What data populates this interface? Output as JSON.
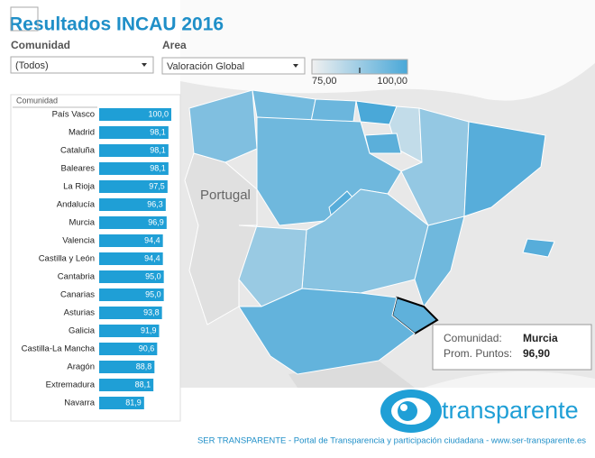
{
  "chart_data": {
    "type": "bar",
    "title": "Resultados INCAU 2016",
    "filters": [
      {
        "label": "Comunidad",
        "value": "(Todos)"
      },
      {
        "label": "Area",
        "value": "Valoración Global"
      }
    ],
    "column_header": "Comunidad",
    "categories": [
      "País Vasco",
      "Madrid",
      "Cataluña",
      "Baleares",
      "La Rioja",
      "Andalucía",
      "Murcia",
      "Valencia",
      "Castilla y León",
      "Cantabria",
      "Canarias",
      "Asturias",
      "Galicia",
      "Castilla-La Mancha",
      "Aragón",
      "Extremadura",
      "Navarra"
    ],
    "values": [
      100.0,
      98.1,
      98.1,
      98.1,
      97.5,
      96.3,
      96.9,
      94.4,
      94.4,
      95.0,
      95.0,
      93.8,
      91.9,
      90.6,
      88.8,
      88.1,
      81.9
    ],
    "value_labels": [
      "100,0",
      "98,1",
      "98,1",
      "98,1",
      "97,5",
      "96,3",
      "96,9",
      "94,4",
      "94,4",
      "95,0",
      "95,0",
      "93,8",
      "91,9",
      "90,6",
      "88,8",
      "88,1",
      "81,9"
    ],
    "color": "#1f9fd6",
    "xlim": [
      52,
      100
    ],
    "color_scale": {
      "colors": [
        "#f0f0f0",
        "#4aa8d8"
      ],
      "range": [
        {
          "value": 75,
          "label": "75,00"
        },
        {
          "value": 100,
          "label": "100,00"
        }
      ]
    },
    "map_label": "Portugal",
    "tooltip": {
      "name_label": "Comunidad:",
      "name": "Murcia",
      "value_label": "Prom. Puntos:",
      "value": {
        "value": 96.9,
        "label": "96,90"
      }
    },
    "logo": "transparente",
    "footer": "SER TRANSPARENTE - Portal de Transparencia y participación ciudadana - www.ser-transparente.es"
  }
}
